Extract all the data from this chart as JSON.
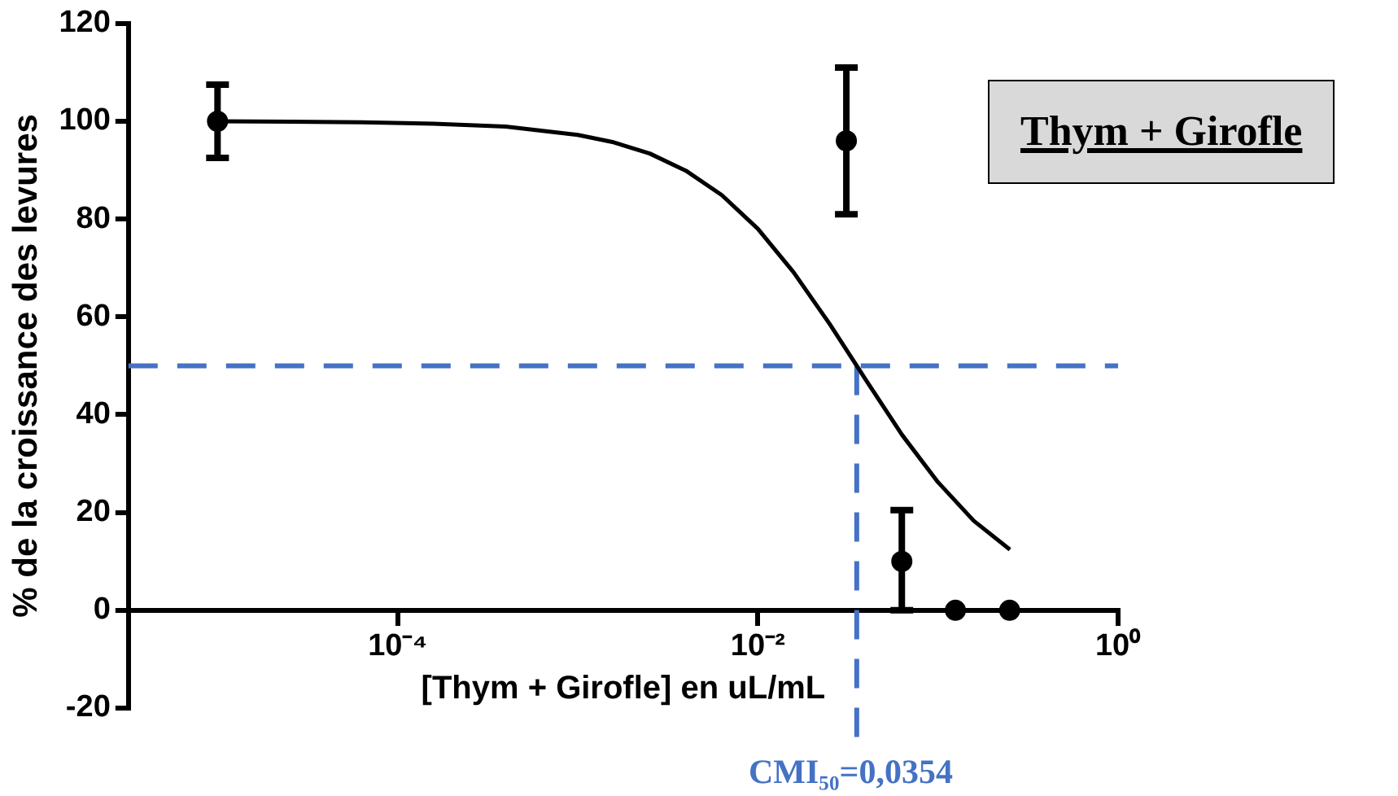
{
  "chart_data": {
    "type": "scatter",
    "title": "Thym + Girofle",
    "xlabel": "[Thym + Girofle] en uL/mL",
    "ylabel": "% de la croissance des levures",
    "log": "x",
    "xlim": [
      3.2e-06,
      1
    ],
    "xticks": [
      {
        "value": 0.0001,
        "label": "10⁻⁴"
      },
      {
        "value": 0.01,
        "label": "10⁻²"
      },
      {
        "value": 1,
        "label": "10⁰"
      }
    ],
    "ylim": [
      -20,
      120
    ],
    "yticks": [
      -20,
      0,
      20,
      40,
      60,
      80,
      100,
      120
    ],
    "grid": false,
    "legend": false,
    "marker": "circle",
    "series": [
      {
        "color": "#000000",
        "x": [
          1e-05,
          0.031,
          0.063,
          0.125,
          0.25
        ],
        "values": [
          100,
          96,
          10,
          0,
          0
        ],
        "errors": [
          [
            92.5,
            107.5
          ],
          [
            81,
            111
          ],
          [
            0,
            20.5
          ],
          null,
          null
        ]
      },
      {
        "type": "line",
        "color": "#000000",
        "marker": "none",
        "x": [
          1e-05,
          2.51e-05,
          6.31e-05,
          0.000158,
          0.000398,
          0.001,
          0.00158,
          0.00251,
          0.00398,
          0.00631,
          0.01,
          0.0158,
          0.0251,
          0.0354,
          0.0398,
          0.0631,
          0.1,
          0.158,
          0.251
        ],
        "values": [
          100,
          99.9,
          99.8,
          99.5,
          98.9,
          97.2,
          95.7,
          93.4,
          89.9,
          84.9,
          78,
          69.1,
          58.5,
          50,
          47.1,
          35.9,
          26.2,
          18.3,
          12.4
        ]
      }
    ],
    "ref_lines": [
      {
        "axis": "y",
        "value": 50,
        "color": "#4472c4",
        "line_style": "dashed"
      },
      {
        "axis": "x",
        "value": 0.0354,
        "color": "#4472c4",
        "line_style": "dashed"
      }
    ],
    "annotations": [
      "CMI₅₀=0,0354"
    ]
  }
}
